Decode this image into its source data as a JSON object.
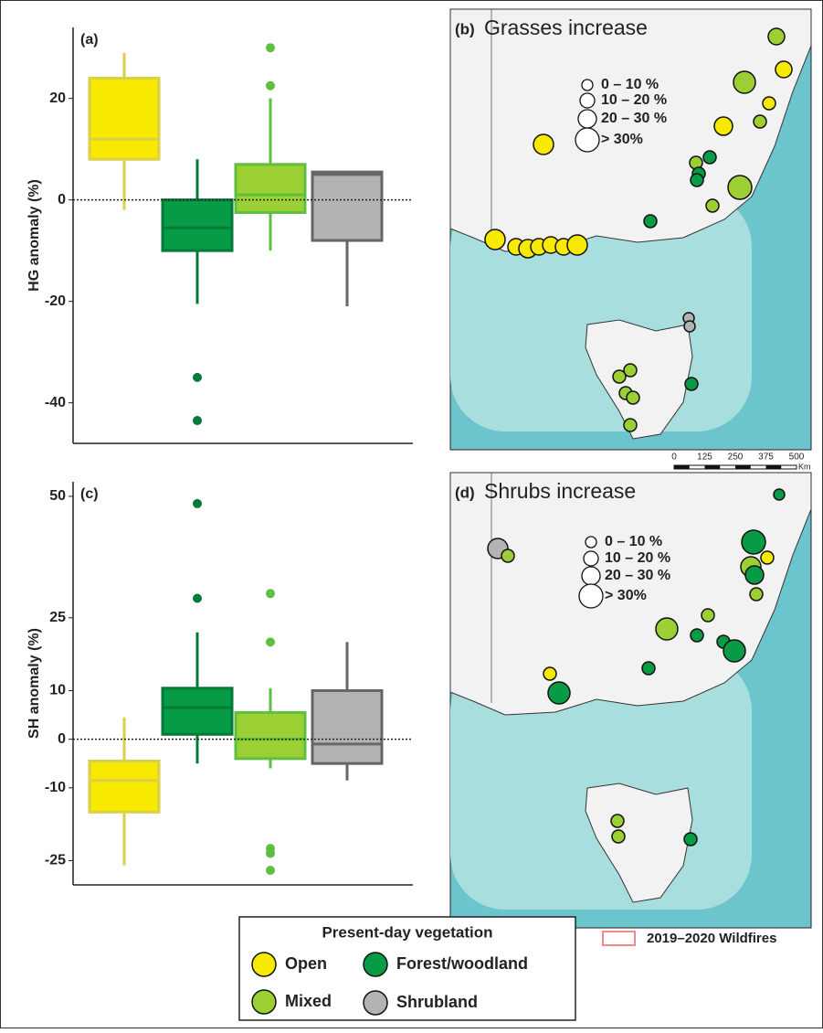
{
  "chart_data": [
    {
      "type": "box",
      "title": "(a)",
      "ylabel": "HG anomaly (%)",
      "ylim": [
        -48,
        34
      ],
      "yticks": [
        -40,
        -20,
        0,
        20
      ],
      "ref_line": 0,
      "series": [
        {
          "color": "#f7ea00",
          "edge": "#d9cf4a",
          "whislo": -2,
          "q1": 8,
          "med": 12,
          "q3": 24,
          "whishi": 29,
          "outliers": []
        },
        {
          "color": "#079b45",
          "edge": "#05793a",
          "whislo": -20.5,
          "q1": -10,
          "med": -5.5,
          "q3": 0,
          "whishi": 8,
          "outliers": [
            -35,
            -43.5
          ]
        },
        {
          "color": "#9ccf33",
          "edge": "#5fbf40",
          "whislo": -10,
          "q1": -2.5,
          "med": 1,
          "q3": 7,
          "whishi": 20,
          "outliers": [
            30,
            22.5
          ]
        },
        {
          "color": "#b3b3b3",
          "edge": "#666666",
          "whislo": -21,
          "q1": -8,
          "med": 5,
          "q3": 5.5,
          "whishi": 5.5,
          "outliers": []
        }
      ]
    },
    {
      "type": "box",
      "title": "(c)",
      "ylabel": "SH anomaly (%)",
      "ylim": [
        -30,
        53
      ],
      "yticks": [
        -25,
        -10,
        0,
        10,
        25,
        50
      ],
      "ref_line": 0,
      "series": [
        {
          "color": "#f7ea00",
          "edge": "#d9cf4a",
          "whislo": -26,
          "q1": -15,
          "med": -8.5,
          "q3": -4.5,
          "whishi": 4.5,
          "outliers": []
        },
        {
          "color": "#079b45",
          "edge": "#05793a",
          "whislo": -5,
          "q1": 1,
          "med": 6.5,
          "q3": 10.5,
          "whishi": 22,
          "outliers": [
            48.5,
            29
          ]
        },
        {
          "color": "#9ccf33",
          "edge": "#5fbf40",
          "whislo": -6,
          "q1": -4,
          "med": 0,
          "q3": 5.5,
          "whishi": 10.5,
          "outliers": [
            30,
            20,
            -22.5,
            -23.5,
            -27
          ]
        },
        {
          "color": "#b3b3b3",
          "edge": "#666666",
          "whislo": -8.5,
          "q1": -5,
          "med": -1,
          "q3": 10,
          "whishi": 20,
          "outliers": []
        }
      ]
    }
  ],
  "maps": [
    {
      "label": "(b)",
      "title": "Grasses increase",
      "size_legend": [
        "0 – 10 %",
        "10 – 20 %",
        "20 – 30 %",
        "> 30%"
      ]
    },
    {
      "label": "(d)",
      "title": "Shrubs increase",
      "size_legend": [
        "0 – 10 %",
        "10 –  20 %",
        "20 – 30 %",
        "> 30%"
      ]
    }
  ],
  "scale_bar": {
    "ticks": [
      0,
      125,
      250,
      375,
      500
    ],
    "unit": "Km"
  },
  "legend": {
    "title": "Present-day vegetation",
    "items": [
      {
        "name": "Open",
        "color": "#f7ea00"
      },
      {
        "name": "Forest/woodland",
        "color": "#079b45"
      },
      {
        "name": "Mixed",
        "color": "#9ccf33"
      },
      {
        "name": "Shrubland",
        "color": "#b3b3b3"
      }
    ]
  },
  "fire_legend": {
    "label": "2019–2020 Wildfires",
    "color": "#ef8a8a"
  }
}
